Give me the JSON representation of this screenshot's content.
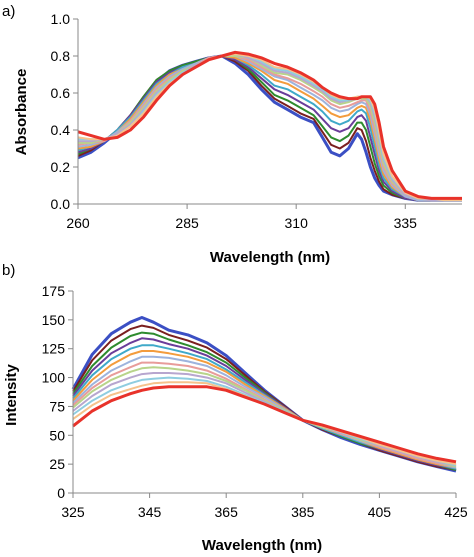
{
  "chart_data": [
    {
      "type": "line",
      "panel_label": "a)",
      "xlabel": "Wavelength (nm)",
      "ylabel": "Absorbance",
      "xlim": [
        260,
        348
      ],
      "ylim": [
        0,
        1.0
      ],
      "xticks": [
        260,
        285,
        310,
        335
      ],
      "yticks": [
        0.0,
        0.2,
        0.4,
        0.6,
        0.8,
        1.0
      ],
      "ytick_labels": [
        "0.0",
        "0.2",
        "0.4",
        "0.6",
        "0.8",
        "1.0"
      ],
      "grid": false,
      "legend": "none",
      "x": [
        260,
        263,
        266,
        269,
        272,
        275,
        278,
        281,
        284,
        287,
        290,
        293,
        296,
        299,
        302,
        305,
        308,
        311,
        314,
        316,
        318,
        320,
        322,
        324,
        325,
        326,
        327,
        328,
        329,
        330,
        332,
        335,
        338,
        341,
        344,
        348
      ],
      "series": [
        {
          "color": "#3b4fc4",
          "values": [
            0.25,
            0.28,
            0.33,
            0.39,
            0.47,
            0.57,
            0.66,
            0.72,
            0.75,
            0.77,
            0.79,
            0.8,
            0.76,
            0.7,
            0.62,
            0.55,
            0.51,
            0.47,
            0.44,
            0.36,
            0.28,
            0.26,
            0.3,
            0.38,
            0.35,
            0.28,
            0.2,
            0.14,
            0.1,
            0.07,
            0.05,
            0.03,
            0.02,
            0.02,
            0.02,
            0.02
          ]
        },
        {
          "color": "#7a1f1f",
          "values": [
            0.26,
            0.29,
            0.34,
            0.4,
            0.48,
            0.58,
            0.67,
            0.72,
            0.75,
            0.77,
            0.79,
            0.8,
            0.77,
            0.72,
            0.64,
            0.57,
            0.53,
            0.49,
            0.46,
            0.39,
            0.32,
            0.3,
            0.33,
            0.41,
            0.4,
            0.34,
            0.25,
            0.18,
            0.12,
            0.08,
            0.05,
            0.03,
            0.02,
            0.02,
            0.02,
            0.02
          ]
        },
        {
          "color": "#2e8b2e",
          "values": [
            0.27,
            0.3,
            0.34,
            0.4,
            0.48,
            0.58,
            0.67,
            0.72,
            0.75,
            0.77,
            0.79,
            0.8,
            0.78,
            0.73,
            0.66,
            0.59,
            0.56,
            0.52,
            0.48,
            0.42,
            0.36,
            0.34,
            0.37,
            0.44,
            0.44,
            0.4,
            0.31,
            0.22,
            0.15,
            0.1,
            0.06,
            0.03,
            0.02,
            0.02,
            0.02,
            0.02
          ]
        },
        {
          "color": "#6a3d9a",
          "values": [
            0.28,
            0.3,
            0.34,
            0.4,
            0.48,
            0.57,
            0.66,
            0.71,
            0.74,
            0.76,
            0.79,
            0.8,
            0.78,
            0.74,
            0.68,
            0.62,
            0.59,
            0.55,
            0.51,
            0.46,
            0.41,
            0.39,
            0.41,
            0.47,
            0.48,
            0.45,
            0.36,
            0.27,
            0.18,
            0.12,
            0.07,
            0.03,
            0.02,
            0.02,
            0.02,
            0.02
          ]
        },
        {
          "color": "#3fa9c9",
          "values": [
            0.29,
            0.31,
            0.34,
            0.4,
            0.47,
            0.56,
            0.65,
            0.7,
            0.74,
            0.76,
            0.79,
            0.8,
            0.79,
            0.75,
            0.7,
            0.64,
            0.62,
            0.58,
            0.54,
            0.5,
            0.45,
            0.43,
            0.45,
            0.5,
            0.51,
            0.49,
            0.41,
            0.31,
            0.21,
            0.14,
            0.08,
            0.04,
            0.02,
            0.02,
            0.02,
            0.02
          ]
        },
        {
          "color": "#f39c3d",
          "values": [
            0.3,
            0.31,
            0.34,
            0.39,
            0.46,
            0.55,
            0.64,
            0.7,
            0.73,
            0.76,
            0.79,
            0.8,
            0.79,
            0.76,
            0.72,
            0.67,
            0.65,
            0.61,
            0.57,
            0.53,
            0.49,
            0.47,
            0.48,
            0.52,
            0.53,
            0.52,
            0.45,
            0.35,
            0.24,
            0.16,
            0.09,
            0.04,
            0.02,
            0.02,
            0.02,
            0.02
          ]
        },
        {
          "color": "#9db3dd",
          "values": [
            0.31,
            0.32,
            0.34,
            0.39,
            0.45,
            0.54,
            0.63,
            0.69,
            0.73,
            0.76,
            0.79,
            0.8,
            0.8,
            0.77,
            0.73,
            0.69,
            0.67,
            0.63,
            0.59,
            0.56,
            0.52,
            0.5,
            0.51,
            0.54,
            0.55,
            0.54,
            0.48,
            0.38,
            0.27,
            0.18,
            0.1,
            0.04,
            0.02,
            0.02,
            0.02,
            0.02
          ]
        },
        {
          "color": "#e89c9a",
          "values": [
            0.32,
            0.33,
            0.34,
            0.38,
            0.45,
            0.53,
            0.62,
            0.68,
            0.72,
            0.75,
            0.79,
            0.8,
            0.8,
            0.78,
            0.74,
            0.7,
            0.68,
            0.65,
            0.61,
            0.58,
            0.54,
            0.52,
            0.53,
            0.55,
            0.56,
            0.56,
            0.5,
            0.41,
            0.3,
            0.2,
            0.11,
            0.05,
            0.03,
            0.02,
            0.02,
            0.02
          ]
        },
        {
          "color": "#b8d48a",
          "values": [
            0.33,
            0.33,
            0.35,
            0.38,
            0.44,
            0.52,
            0.61,
            0.67,
            0.72,
            0.75,
            0.78,
            0.8,
            0.8,
            0.79,
            0.75,
            0.71,
            0.7,
            0.67,
            0.63,
            0.6,
            0.56,
            0.54,
            0.55,
            0.57,
            0.57,
            0.57,
            0.53,
            0.44,
            0.32,
            0.22,
            0.12,
            0.05,
            0.03,
            0.02,
            0.02,
            0.02
          ]
        },
        {
          "color": "#b7a6cf",
          "values": [
            0.34,
            0.34,
            0.35,
            0.38,
            0.43,
            0.51,
            0.6,
            0.66,
            0.71,
            0.75,
            0.78,
            0.8,
            0.81,
            0.79,
            0.76,
            0.72,
            0.71,
            0.68,
            0.64,
            0.61,
            0.57,
            0.55,
            0.56,
            0.57,
            0.58,
            0.58,
            0.55,
            0.47,
            0.35,
            0.24,
            0.13,
            0.05,
            0.03,
            0.02,
            0.02,
            0.02
          ]
        },
        {
          "color": "#8fcde0",
          "values": [
            0.35,
            0.35,
            0.35,
            0.37,
            0.42,
            0.5,
            0.59,
            0.66,
            0.71,
            0.74,
            0.78,
            0.8,
            0.81,
            0.8,
            0.77,
            0.73,
            0.72,
            0.69,
            0.65,
            0.62,
            0.58,
            0.56,
            0.56,
            0.58,
            0.58,
            0.58,
            0.56,
            0.49,
            0.37,
            0.25,
            0.14,
            0.06,
            0.03,
            0.03,
            0.02,
            0.02
          ]
        },
        {
          "color": "#f6c28b",
          "values": [
            0.36,
            0.35,
            0.35,
            0.37,
            0.42,
            0.49,
            0.58,
            0.65,
            0.7,
            0.74,
            0.78,
            0.8,
            0.81,
            0.8,
            0.78,
            0.74,
            0.73,
            0.7,
            0.66,
            0.63,
            0.59,
            0.57,
            0.57,
            0.58,
            0.58,
            0.58,
            0.57,
            0.51,
            0.39,
            0.27,
            0.15,
            0.06,
            0.03,
            0.03,
            0.02,
            0.02
          ]
        },
        {
          "color": "#e8322a",
          "values": [
            0.39,
            0.37,
            0.35,
            0.36,
            0.4,
            0.47,
            0.56,
            0.64,
            0.7,
            0.74,
            0.78,
            0.8,
            0.82,
            0.81,
            0.79,
            0.76,
            0.74,
            0.71,
            0.67,
            0.63,
            0.6,
            0.58,
            0.57,
            0.57,
            0.58,
            0.58,
            0.58,
            0.54,
            0.44,
            0.31,
            0.18,
            0.07,
            0.04,
            0.03,
            0.03,
            0.03
          ]
        }
      ]
    },
    {
      "type": "line",
      "panel_label": "b)",
      "xlabel": "Wavelength (nm)",
      "ylabel": "Intensity",
      "xlim": [
        325,
        425
      ],
      "ylim": [
        0,
        175
      ],
      "xticks": [
        325,
        345,
        365,
        385,
        405,
        425
      ],
      "yticks": [
        0,
        25,
        50,
        75,
        100,
        125,
        150,
        175
      ],
      "grid": false,
      "legend": "none",
      "x": [
        325,
        330,
        335,
        340,
        343,
        346,
        350,
        355,
        360,
        365,
        370,
        375,
        380,
        385,
        390,
        395,
        400,
        405,
        410,
        415,
        420,
        425
      ],
      "series": [
        {
          "color": "#3b4fc4",
          "values": [
            90,
            120,
            138,
            148,
            152,
            148,
            141,
            137,
            130,
            119,
            104,
            89,
            76,
            63,
            55,
            48,
            42,
            37,
            32,
            27,
            23,
            19
          ]
        },
        {
          "color": "#7a1f1f",
          "values": [
            88,
            115,
            132,
            142,
            145,
            143,
            137,
            132,
            126,
            116,
            102,
            88,
            76,
            63,
            55,
            49,
            43,
            37,
            32,
            27,
            23,
            20
          ]
        },
        {
          "color": "#2e8b2e",
          "values": [
            86,
            110,
            126,
            136,
            139,
            138,
            133,
            128,
            122,
            113,
            100,
            87,
            75,
            63,
            56,
            49,
            43,
            38,
            33,
            28,
            24,
            20
          ]
        },
        {
          "color": "#6a3d9a",
          "values": [
            84,
            106,
            121,
            130,
            134,
            133,
            129,
            125,
            119,
            110,
            98,
            86,
            75,
            63,
            56,
            50,
            44,
            38,
            33,
            28,
            24,
            21
          ]
        },
        {
          "color": "#3fa9c9",
          "values": [
            82,
            102,
            116,
            125,
            128,
            128,
            125,
            121,
            116,
            107,
            96,
            85,
            74,
            63,
            56,
            50,
            44,
            39,
            34,
            29,
            25,
            21
          ]
        },
        {
          "color": "#f39c3d",
          "values": [
            80,
            98,
            111,
            120,
            123,
            123,
            121,
            118,
            113,
            105,
            94,
            84,
            74,
            63,
            57,
            51,
            45,
            39,
            34,
            29,
            25,
            22
          ]
        },
        {
          "color": "#9db3dd",
          "values": [
            78,
            94,
            106,
            114,
            118,
            118,
            117,
            114,
            110,
            102,
            92,
            83,
            73,
            63,
            57,
            51,
            45,
            40,
            35,
            30,
            26,
            22
          ]
        },
        {
          "color": "#e89c9a",
          "values": [
            76,
            91,
            102,
            109,
            113,
            113,
            112,
            110,
            106,
            99,
            90,
            81,
            72,
            63,
            57,
            51,
            46,
            40,
            35,
            30,
            26,
            23
          ]
        },
        {
          "color": "#b8d48a",
          "values": [
            74,
            88,
            98,
            105,
            108,
            109,
            108,
            106,
            103,
            97,
            89,
            80,
            72,
            63,
            57,
            52,
            46,
            41,
            36,
            31,
            27,
            23
          ]
        },
        {
          "color": "#b7a6cf",
          "values": [
            71,
            84,
            94,
            100,
            103,
            104,
            104,
            103,
            100,
            95,
            87,
            79,
            71,
            63,
            58,
            52,
            47,
            41,
            36,
            31,
            27,
            24
          ]
        },
        {
          "color": "#8fcde0",
          "values": [
            68,
            80,
            89,
            95,
            98,
            99,
            100,
            99,
            97,
            92,
            85,
            78,
            71,
            63,
            58,
            53,
            47,
            42,
            37,
            32,
            28,
            24
          ]
        },
        {
          "color": "#f6c28b",
          "values": [
            64,
            76,
            85,
            90,
            93,
            95,
            96,
            96,
            95,
            90,
            84,
            77,
            70,
            63,
            58,
            53,
            48,
            42,
            37,
            32,
            28,
            25
          ]
        },
        {
          "color": "#e8322a",
          "values": [
            58,
            71,
            80,
            86,
            89,
            91,
            92,
            92,
            92,
            89,
            83,
            77,
            70,
            63,
            59,
            54,
            49,
            44,
            39,
            34,
            30,
            27
          ]
        }
      ]
    }
  ]
}
